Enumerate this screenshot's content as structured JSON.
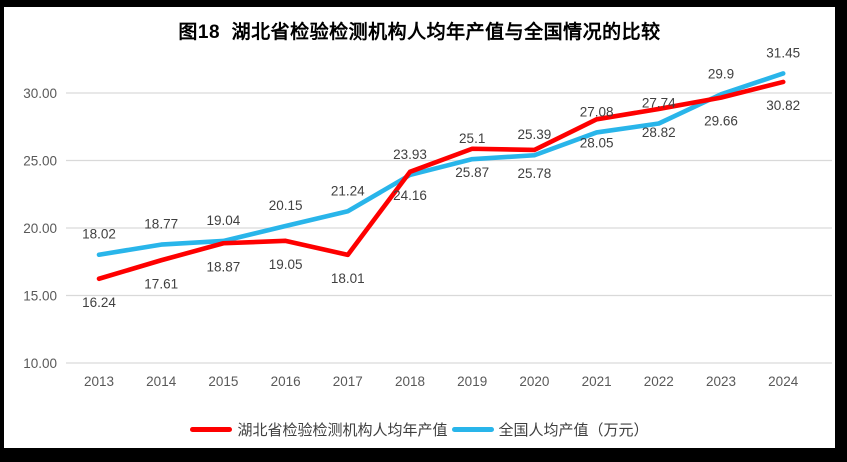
{
  "title": "图18  湖北省检验检测机构人均年产值与全国情况的比较",
  "colors": {
    "hubei": "#fe0000",
    "national": "#29b5ea",
    "grid": "#d9d9d9",
    "axis_text": "#595959",
    "label_text": "#404040",
    "frame": "#000000",
    "background": "#ffffff"
  },
  "chart_data": {
    "type": "line",
    "categories": [
      "2013",
      "2014",
      "2015",
      "2016",
      "2017",
      "2018",
      "2019",
      "2020",
      "2021",
      "2022",
      "2023",
      "2024"
    ],
    "series": [
      {
        "name": "湖北省检验检测机构人均年产值",
        "color_key": "hubei",
        "label_position": "below",
        "values": [
          16.24,
          17.61,
          18.87,
          19.05,
          18.01,
          24.16,
          25.87,
          25.78,
          28.05,
          28.82,
          29.66,
          30.82
        ],
        "value_labels": [
          "16.24",
          "17.61",
          "18.87",
          "19.05",
          "18.01",
          "24.16",
          "25.87",
          "25.78",
          "28.05",
          "28.82",
          "29.66",
          "30.82"
        ]
      },
      {
        "name": "全国人均产值（万元）",
        "color_key": "national",
        "label_position": "above",
        "values": [
          18.02,
          18.77,
          19.04,
          20.15,
          21.24,
          23.93,
          25.1,
          25.39,
          27.08,
          27.74,
          29.9,
          31.45
        ],
        "value_labels": [
          "18.02",
          "18.77",
          "19.04",
          "20.15",
          "21.24",
          "23.93",
          "25.1",
          "25.39",
          "27.08",
          "27.74",
          "29.9",
          "31.45"
        ]
      }
    ],
    "y_ticks": [
      {
        "label": "30.00",
        "value": 30
      },
      {
        "label": "25.00",
        "value": 25
      },
      {
        "label": "20.00",
        "value": 20
      },
      {
        "label": "15.00",
        "value": 15
      },
      {
        "label": "10.00",
        "value": 10
      }
    ],
    "ylim": [
      10,
      32.6
    ],
    "grid": true,
    "legend_position": "bottom",
    "title": "图18  湖北省检验检测机构人均年产值与全国情况的比较",
    "xlabel": "",
    "ylabel": ""
  },
  "legend": {
    "items": [
      {
        "label": "湖北省检验检测机构人均年产值",
        "color_key": "hubei"
      },
      {
        "label": "全国人均产值（万元）",
        "color_key": "national"
      }
    ]
  }
}
